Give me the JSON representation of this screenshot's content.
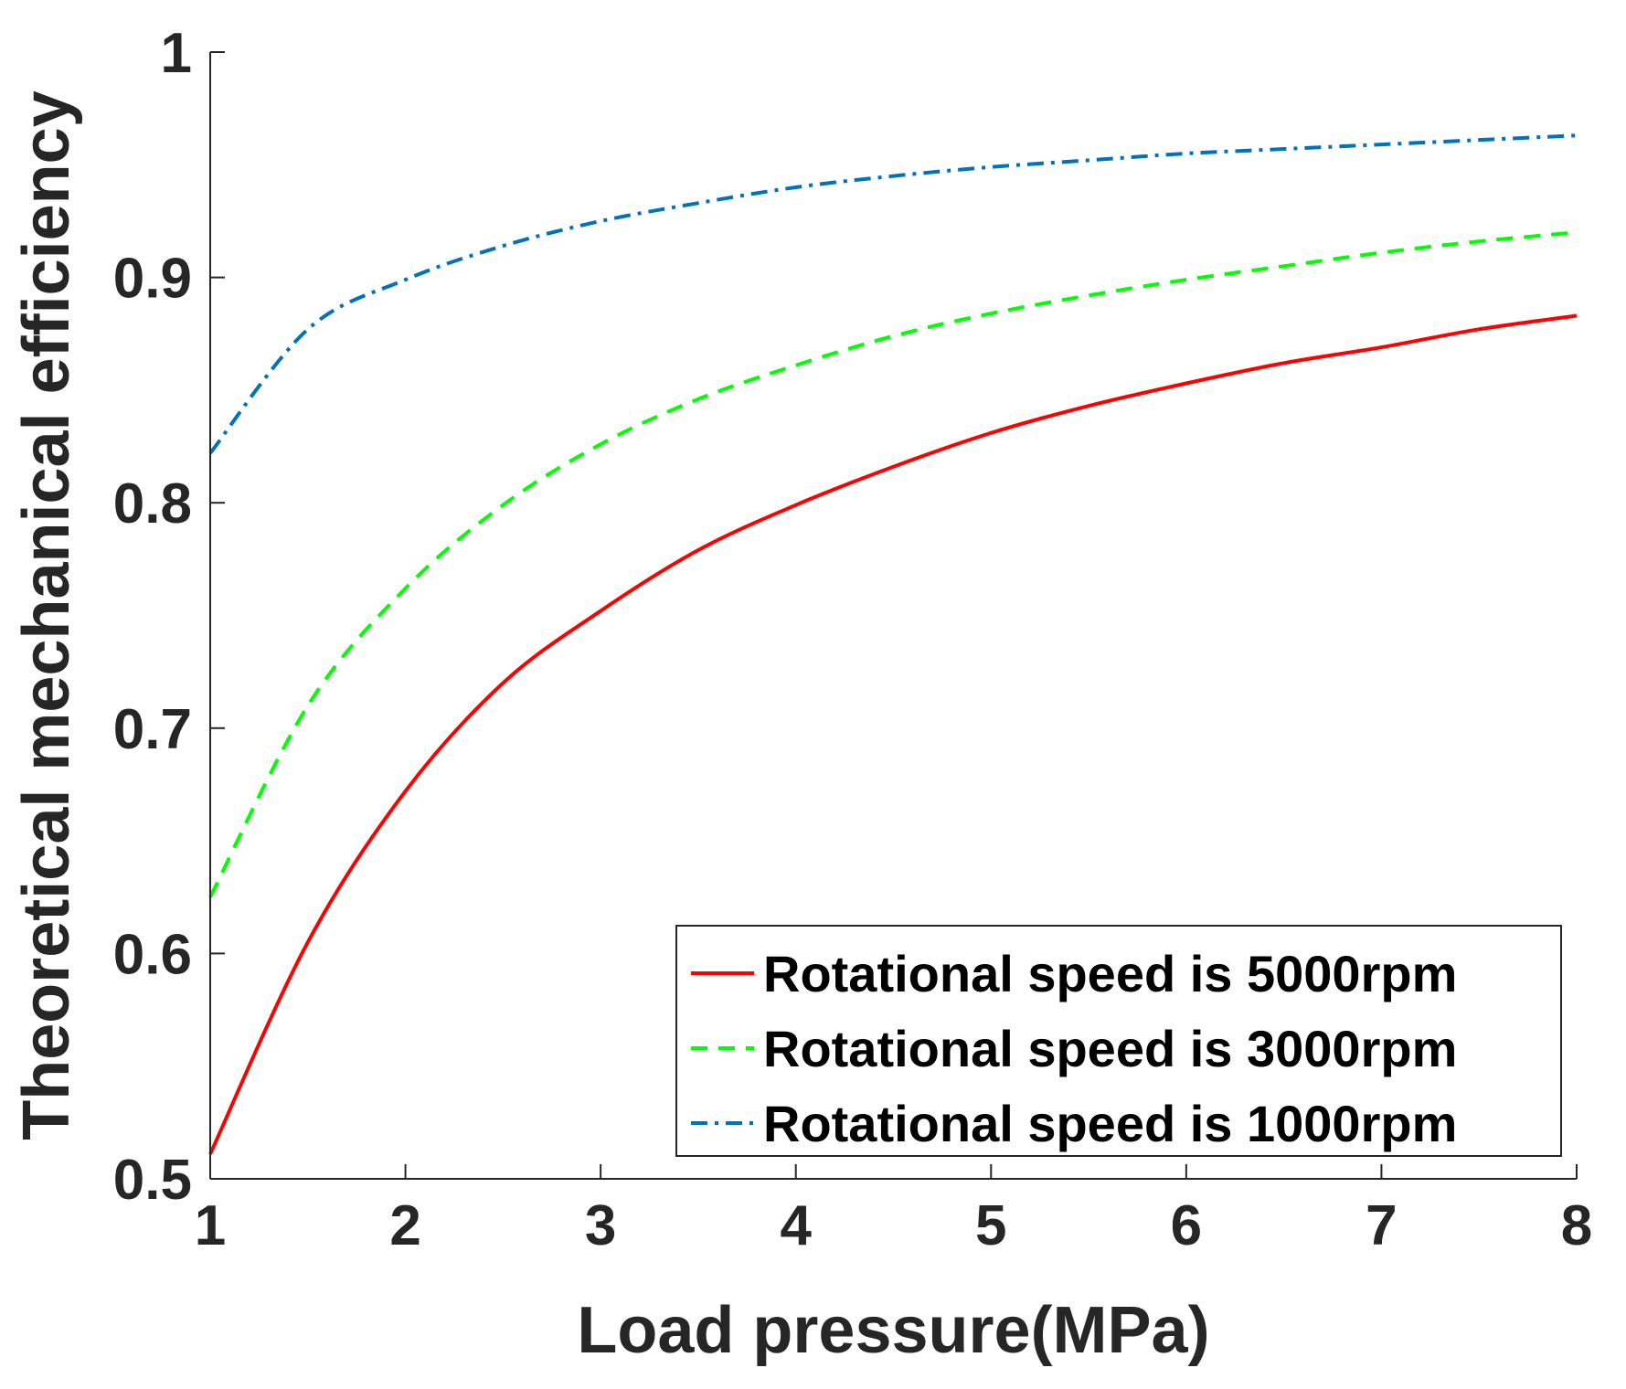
{
  "chart_data": {
    "type": "line",
    "xlabel": "Load pressure(MPa)",
    "ylabel": "Theoretical mechanical efficiency",
    "xlim": [
      1,
      8
    ],
    "ylim": [
      0.5,
      1
    ],
    "xticks": [
      "1",
      "2",
      "3",
      "4",
      "5",
      "6",
      "7",
      "8"
    ],
    "yticks": [
      "0.5",
      "0.6",
      "0.7",
      "0.8",
      "0.9",
      "1"
    ],
    "xtick_values": [
      1,
      2,
      3,
      4,
      5,
      6,
      7,
      8
    ],
    "ytick_values": [
      0.5,
      0.6,
      0.7,
      0.8,
      0.9,
      1.0
    ],
    "legend_position": "bottom-right",
    "x": [
      1,
      1.5,
      2,
      2.5,
      3,
      3.5,
      4,
      4.5,
      5,
      5.5,
      6,
      6.5,
      7,
      7.5,
      8
    ],
    "series": [
      {
        "name": "Rotational speed is 5000rpm",
        "color": "#ff0000",
        "dash": "solid",
        "values": [
          0.511,
          0.605,
          0.672,
          0.72,
          0.752,
          0.779,
          0.799,
          0.816,
          0.831,
          0.843,
          0.853,
          0.862,
          0.869,
          0.877,
          0.883
        ]
      },
      {
        "name": "Rotational speed is 3000rpm",
        "color": "#00ff00",
        "dash": "dashed",
        "values": [
          0.625,
          0.71,
          0.762,
          0.799,
          0.826,
          0.846,
          0.861,
          0.874,
          0.884,
          0.892,
          0.899,
          0.905,
          0.911,
          0.916,
          0.92
        ]
      },
      {
        "name": "Rotational speed is 1000rpm",
        "color": "#0072bd",
        "dash": "dashdot",
        "values": [
          0.822,
          0.877,
          0.899,
          0.914,
          0.925,
          0.933,
          0.94,
          0.945,
          0.949,
          0.952,
          0.955,
          0.957,
          0.959,
          0.961,
          0.963
        ]
      }
    ]
  }
}
